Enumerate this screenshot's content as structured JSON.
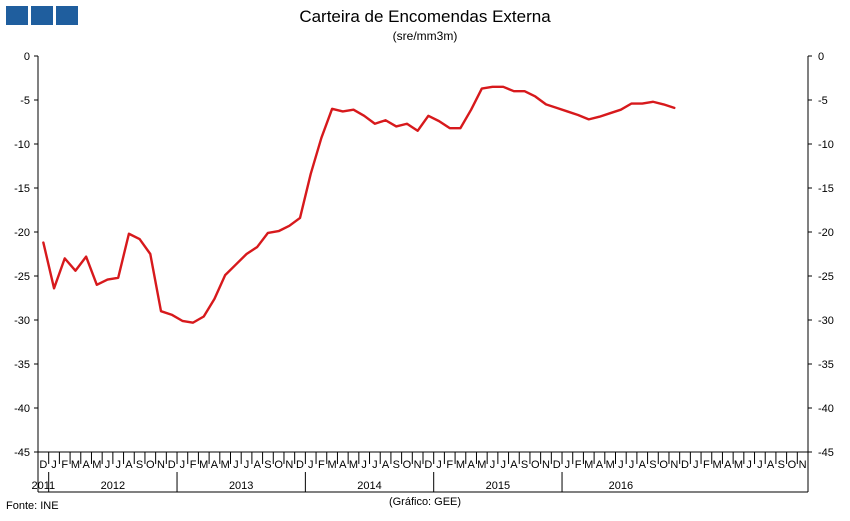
{
  "header": {
    "title": "Carteira de Encomendas Externa",
    "subtitle": "(sre/mm3m)"
  },
  "footer": {
    "source": "Fonte: INE",
    "credit": "(Gráfico: GEE)"
  },
  "chart_data": {
    "type": "line",
    "title": "Carteira de Encomendas Externa",
    "subtitle": "(sre/mm3m)",
    "ylim": [
      -45,
      0
    ],
    "y_ticks": [
      0,
      -5,
      -10,
      -15,
      -20,
      -25,
      -30,
      -35,
      -40,
      -45
    ],
    "y_axis_both_sides": true,
    "grid": false,
    "month_labels": [
      "D",
      "J",
      "F",
      "M",
      "A",
      "M",
      "J",
      "J",
      "A",
      "S",
      "O",
      "N",
      "D",
      "J",
      "F",
      "M",
      "A",
      "M",
      "J",
      "J",
      "A",
      "S",
      "O",
      "N",
      "D",
      "J",
      "F",
      "M",
      "A",
      "M",
      "J",
      "J",
      "A",
      "S",
      "O",
      "N",
      "D",
      "J",
      "F",
      "M",
      "A",
      "M",
      "J",
      "J",
      "A",
      "S",
      "O",
      "N",
      "D",
      "J",
      "F",
      "M",
      "A",
      "M",
      "J",
      "J",
      "A",
      "S",
      "O",
      "N",
      "D",
      "J",
      "F",
      "M",
      "A",
      "M",
      "J",
      "J",
      "A",
      "S",
      "O",
      "N"
    ],
    "year_groups": [
      {
        "label": "2011",
        "start": 0,
        "end": 0
      },
      {
        "label": "2012",
        "start": 1,
        "end": 12
      },
      {
        "label": "2013",
        "start": 13,
        "end": 24
      },
      {
        "label": "2014",
        "start": 25,
        "end": 36
      },
      {
        "label": "2015",
        "start": 37,
        "end": 48
      },
      {
        "label": "2016",
        "start": 49,
        "end": 59
      }
    ],
    "series": [
      {
        "color": "#d7191c",
        "values": [
          -21.2,
          -26.4,
          -23.0,
          -24.4,
          -22.8,
          -26.0,
          -25.4,
          -25.2,
          -20.2,
          -20.8,
          -22.5,
          -29.0,
          -29.4,
          -30.1,
          -30.3,
          -29.6,
          -27.6,
          -24.9,
          -23.7,
          -22.5,
          -21.7,
          -20.1,
          -19.9,
          -19.3,
          -18.4,
          -13.4,
          -9.3,
          -6.0,
          -6.3,
          -6.1,
          -6.8,
          -7.7,
          -7.3,
          -8.0,
          -7.7,
          -8.5,
          -6.8,
          -7.4,
          -8.2,
          -8.2,
          -6.1,
          -3.7,
          -3.5,
          -3.5,
          -4.0,
          -4.0,
          -4.6,
          -5.5,
          -5.9,
          -6.3,
          -6.7,
          -7.2,
          -6.9,
          -6.5,
          -6.1,
          -5.4,
          -5.4,
          -5.2,
          -5.5,
          -5.9
        ]
      }
    ]
  }
}
